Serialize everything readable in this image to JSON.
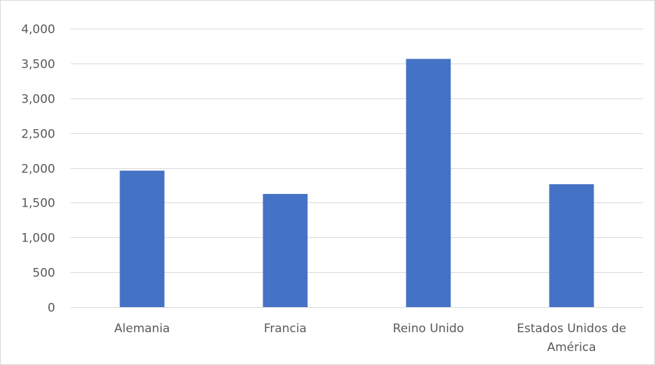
{
  "chart_data": {
    "type": "bar",
    "title": "",
    "xlabel": "",
    "ylabel": "",
    "categories": [
      "Alemania",
      "Francia",
      "Reino Unido",
      "Estados Unidos de América"
    ],
    "category_label_lines": [
      [
        "Alemania"
      ],
      [
        "Francia"
      ],
      [
        "Reino Unido"
      ],
      [
        "Estados Unidos de",
        "América"
      ]
    ],
    "values": [
      1960,
      1625,
      3565,
      1765
    ],
    "ylim": [
      0,
      4000
    ],
    "yticks": [
      0,
      500,
      1000,
      1500,
      2000,
      2500,
      3000,
      3500,
      4000
    ],
    "ytick_labels": [
      "0",
      "500",
      "1,000",
      "1,500",
      "2,000",
      "2,500",
      "3,000",
      "3,500",
      "4,000"
    ],
    "grid": true,
    "legend": "none",
    "colors": {
      "bar": "#4472c4",
      "grid": "#d9d9d9",
      "text": "#595959"
    }
  }
}
